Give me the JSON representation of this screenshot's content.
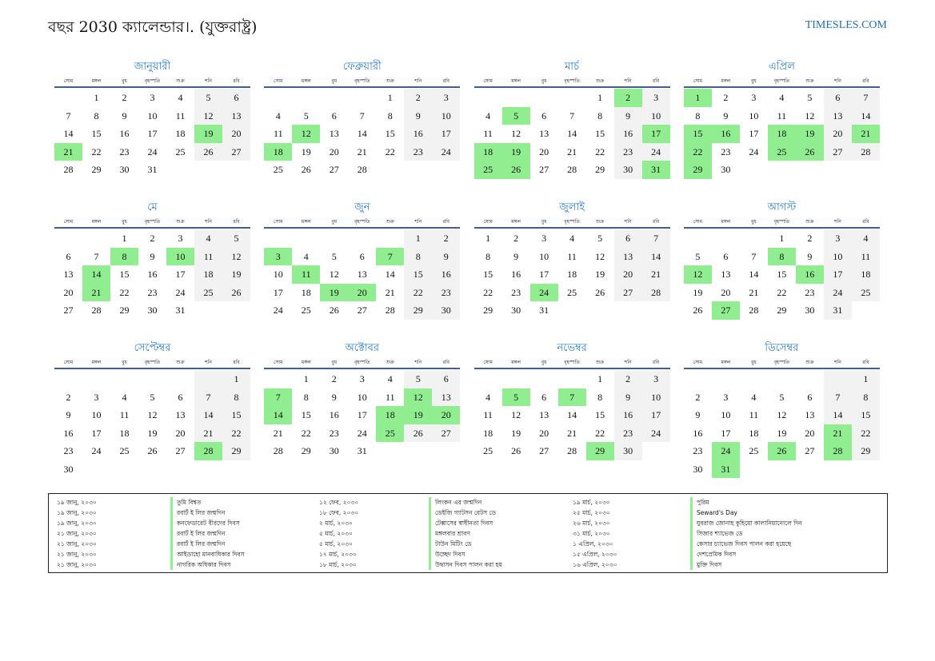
{
  "header": {
    "title": "বছর 2030 ক্যালেন্ডার।. (যুক্তরাষ্ট্র)",
    "site": "TIMESLES.COM"
  },
  "weekdays": [
    "সোম",
    "মঙ্গল",
    "বুধ",
    "বৃহস্পতি",
    "শুক্র",
    "শনি",
    "রবি"
  ],
  "months": [
    {
      "name": "জানুয়ারী",
      "start_offset": 1,
      "days": 31,
      "highlight": [
        19,
        21
      ]
    },
    {
      "name": "ফেব্রুয়ারী",
      "start_offset": 4,
      "days": 28,
      "highlight": [
        12,
        18
      ]
    },
    {
      "name": "মার্চ",
      "start_offset": 4,
      "days": 31,
      "highlight": [
        2,
        5,
        17,
        18,
        19,
        25,
        26,
        31
      ]
    },
    {
      "name": "এপ্রিল",
      "start_offset": 0,
      "days": 30,
      "highlight": [
        1,
        15,
        16,
        18,
        19,
        21,
        22,
        25,
        26,
        29
      ]
    },
    {
      "name": "মে",
      "start_offset": 2,
      "days": 31,
      "highlight": [
        8,
        10,
        14,
        21
      ]
    },
    {
      "name": "জুন",
      "start_offset": 5,
      "days": 30,
      "highlight": [
        3,
        7,
        11,
        19,
        20
      ]
    },
    {
      "name": "জুলাই",
      "start_offset": 0,
      "days": 31,
      "highlight": [
        24
      ]
    },
    {
      "name": "আগস্ট",
      "start_offset": 3,
      "days": 31,
      "highlight": [
        8,
        12,
        16,
        27
      ]
    },
    {
      "name": "সেপ্টেম্বর",
      "start_offset": 6,
      "days": 30,
      "highlight": [
        28
      ]
    },
    {
      "name": "অক্টোবর",
      "start_offset": 1,
      "days": 31,
      "highlight": [
        7,
        12,
        14,
        18,
        19,
        20,
        25
      ]
    },
    {
      "name": "নভেম্বর",
      "start_offset": 4,
      "days": 30,
      "highlight": [
        5,
        7,
        29
      ]
    },
    {
      "name": "ডিসেম্বর",
      "start_offset": 6,
      "days": 31,
      "highlight": [
        21,
        24,
        26,
        28,
        31
      ]
    }
  ],
  "holidays": [
    {
      "date": "১৯ জানু, ২০৩০",
      "name": "তুমি বিশ্বত"
    },
    {
      "date": "১৯ জানু, ২০৩০",
      "name": "রবার্ট ই লির জন্মদিন"
    },
    {
      "date": "১৯ জানু, ২০৩০",
      "name": "কনফেডারেট বীরদের দিবস"
    },
    {
      "date": "২১ জানু, ২০৩০",
      "name": "রবার্ট ই লির জন্মদিন"
    },
    {
      "date": "২১ জানু, ২০৩০",
      "name": "রবার্ট ই লির জন্মদিন"
    },
    {
      "date": "২১ জানু, ২০৩০",
      "name": "আইডাহো মানবাধিকার দিবস"
    },
    {
      "date": "২১ জানু, ২০৩০",
      "name": "নাগরিক অধিকার দিবস"
    },
    {
      "date": "১২ ফেব, ২০৩০",
      "name": "লিংকন এর জন্মদিন"
    },
    {
      "date": "১৮ ফেব, ২০৩০",
      "name": "ডেইজি গ্যাটসন বেটস ডে"
    },
    {
      "date": "২ মার্চ, ২০৩০",
      "name": "টেক্সাসের স্বাধীনতা দিবস"
    },
    {
      "date": "৫ মার্চ, ২০৩০",
      "name": "মঙ্গলবার শ্রাবণ"
    },
    {
      "date": "৫ মার্চ, ২০৩০",
      "name": "টাউন মিটিং ডে"
    },
    {
      "date": "১৭ মার্চ, ২০৩০",
      "name": "উচ্ছেদ দিবস"
    },
    {
      "date": "১৮ মার্চ, ২০৩০",
      "name": "উদ্বাসন দিবস পালন করা হয়"
    },
    {
      "date": "১৯ মার্চ, ২০৩০",
      "name": "পুরিম"
    },
    {
      "date": "২৫ মার্চ, ২০৩০",
      "name": "Seward's Day"
    },
    {
      "date": "২৬ মার্চ, ২০৩০",
      "name": "যুবরাজ জোনাহ কুহিয়ো কালানিয়ানোলে দিন"
    },
    {
      "date": "৩১ মার্চ, ২০৩০",
      "name": "সিজার শ্যাভেজ ডে"
    },
    {
      "date": "১ এপ্রিল, ২০৩০",
      "name": "কেসার চ্যাভেজ দিবস পালন করা হয়েছে"
    },
    {
      "date": "১৫ এপ্রিল, ২০৩০",
      "name": "দেশপ্রেমিক দিবস"
    },
    {
      "date": "১৬ এপ্রিল, ২০৩০",
      "name": "মুক্তি দিবস"
    }
  ]
}
